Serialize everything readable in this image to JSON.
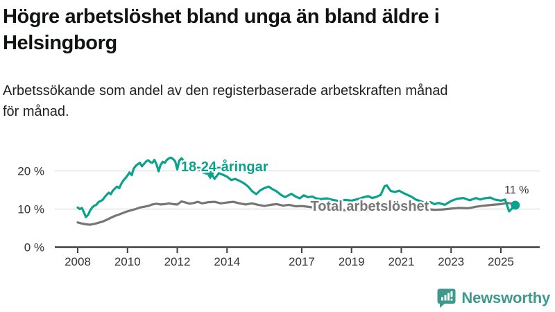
{
  "header": {
    "title_lines": [
      "Högre arbetslöshet bland unga än bland äldre i",
      "Helsingborg"
    ],
    "subtitle_lines": [
      "Arbetssökande som andel av den registerbaserade arbetskraften månad",
      "för månad."
    ]
  },
  "chart_data": {
    "type": "line",
    "title": "Högre arbetslöshet bland unga än bland äldre i Helsingborg",
    "subtitle": "Arbetssökande som andel av den registerbaserade arbetskraften månad för månad.",
    "xlabel": "",
    "ylabel": "",
    "x_unit": "year (monthly data)",
    "xlim": [
      2007.6,
      2026.2
    ],
    "ylim": [
      0,
      24
    ],
    "grid": "horizontal",
    "legend_position": "inline-labels",
    "yticks": [
      {
        "value": 0,
        "label": "0 %"
      },
      {
        "value": 10,
        "label": "10 %"
      },
      {
        "value": 20,
        "label": "20 %"
      }
    ],
    "xticks": [
      2008,
      2010,
      2012,
      2014,
      2017,
      2019,
      2021,
      2023,
      2025
    ],
    "series": [
      {
        "name": "Total arbetslöshet",
        "color": "#767676",
        "label_x": 2019.73,
        "label_y": 9.55,
        "points": [
          [
            2008.0,
            6.5
          ],
          [
            2008.17,
            6.2
          ],
          [
            2008.33,
            6.0
          ],
          [
            2008.5,
            5.9
          ],
          [
            2008.67,
            6.1
          ],
          [
            2008.83,
            6.4
          ],
          [
            2009.0,
            6.7
          ],
          [
            2009.17,
            7.2
          ],
          [
            2009.33,
            7.7
          ],
          [
            2009.5,
            8.2
          ],
          [
            2009.67,
            8.6
          ],
          [
            2009.83,
            9.0
          ],
          [
            2010.0,
            9.4
          ],
          [
            2010.17,
            9.7
          ],
          [
            2010.33,
            10.0
          ],
          [
            2010.5,
            10.4
          ],
          [
            2010.67,
            10.6
          ],
          [
            2010.83,
            10.8
          ],
          [
            2011.0,
            11.2
          ],
          [
            2011.17,
            11.4
          ],
          [
            2011.33,
            11.2
          ],
          [
            2011.5,
            11.3
          ],
          [
            2011.67,
            11.5
          ],
          [
            2011.83,
            11.3
          ],
          [
            2012.0,
            11.2
          ],
          [
            2012.17,
            12.0
          ],
          [
            2012.33,
            11.7
          ],
          [
            2012.5,
            11.4
          ],
          [
            2012.67,
            11.6
          ],
          [
            2012.83,
            11.9
          ],
          [
            2013.0,
            11.5
          ],
          [
            2013.25,
            11.8
          ],
          [
            2013.5,
            11.9
          ],
          [
            2013.75,
            11.5
          ],
          [
            2014.0,
            11.7
          ],
          [
            2014.25,
            11.9
          ],
          [
            2014.5,
            11.5
          ],
          [
            2014.75,
            11.2
          ],
          [
            2015.0,
            11.5
          ],
          [
            2015.25,
            11.1
          ],
          [
            2015.5,
            10.8
          ],
          [
            2015.75,
            11.1
          ],
          [
            2016.0,
            11.3
          ],
          [
            2016.25,
            10.9
          ],
          [
            2016.5,
            11.1
          ],
          [
            2016.75,
            10.7
          ],
          [
            2017.0,
            10.8
          ],
          [
            2017.5,
            10.4
          ],
          [
            2018.0,
            10.1
          ],
          [
            2018.5,
            9.8
          ],
          [
            2019.0,
            9.6
          ],
          [
            2019.5,
            9.5
          ],
          [
            2020.0,
            9.9
          ],
          [
            2020.33,
            11.1
          ],
          [
            2020.58,
            11.4
          ],
          [
            2021.0,
            11.0
          ],
          [
            2021.5,
            10.4
          ],
          [
            2022.0,
            10.0
          ],
          [
            2022.33,
            9.8
          ],
          [
            2022.67,
            9.9
          ],
          [
            2023.0,
            10.1
          ],
          [
            2023.33,
            10.3
          ],
          [
            2023.67,
            10.2
          ],
          [
            2024.0,
            10.6
          ],
          [
            2024.33,
            10.9
          ],
          [
            2024.67,
            11.1
          ],
          [
            2025.0,
            11.3
          ],
          [
            2025.25,
            11.6
          ],
          [
            2025.5,
            11.4
          ]
        ]
      },
      {
        "name": "18-24-åringar",
        "color": "#0aa18d",
        "label_x": 2013.9,
        "label_y": 19.9,
        "points": [
          [
            2008.0,
            10.4
          ],
          [
            2008.08,
            10.0
          ],
          [
            2008.17,
            10.3
          ],
          [
            2008.25,
            9.1
          ],
          [
            2008.33,
            7.9
          ],
          [
            2008.42,
            8.5
          ],
          [
            2008.5,
            9.6
          ],
          [
            2008.58,
            10.4
          ],
          [
            2008.67,
            10.9
          ],
          [
            2008.75,
            11.1
          ],
          [
            2008.83,
            11.8
          ],
          [
            2008.92,
            12.1
          ],
          [
            2009.0,
            12.4
          ],
          [
            2009.08,
            13.1
          ],
          [
            2009.17,
            13.8
          ],
          [
            2009.25,
            14.3
          ],
          [
            2009.33,
            13.9
          ],
          [
            2009.42,
            14.9
          ],
          [
            2009.5,
            15.4
          ],
          [
            2009.58,
            15.9
          ],
          [
            2009.67,
            15.5
          ],
          [
            2009.75,
            16.6
          ],
          [
            2009.83,
            17.5
          ],
          [
            2009.92,
            18.1
          ],
          [
            2010.0,
            18.8
          ],
          [
            2010.08,
            19.6
          ],
          [
            2010.17,
            18.9
          ],
          [
            2010.25,
            20.6
          ],
          [
            2010.33,
            21.3
          ],
          [
            2010.42,
            21.8
          ],
          [
            2010.5,
            22.1
          ],
          [
            2010.58,
            21.2
          ],
          [
            2010.67,
            21.9
          ],
          [
            2010.75,
            22.5
          ],
          [
            2010.83,
            22.8
          ],
          [
            2010.92,
            22.3
          ],
          [
            2011.0,
            22.1
          ],
          [
            2011.08,
            22.9
          ],
          [
            2011.17,
            21.7
          ],
          [
            2011.25,
            19.9
          ],
          [
            2011.33,
            21.6
          ],
          [
            2011.42,
            22.4
          ],
          [
            2011.5,
            22.1
          ],
          [
            2011.58,
            22.9
          ],
          [
            2011.67,
            23.3
          ],
          [
            2011.75,
            23.5
          ],
          [
            2011.83,
            23.1
          ],
          [
            2011.92,
            22.5
          ],
          [
            2012.0,
            20.4
          ],
          [
            2012.08,
            22.7
          ],
          [
            2012.17,
            23.3
          ],
          [
            2012.25,
            22.7
          ],
          [
            2012.33,
            22.1
          ],
          [
            2012.42,
            21.8
          ],
          [
            2012.5,
            21.2
          ],
          [
            2012.58,
            20.7
          ],
          [
            2012.67,
            20.3
          ],
          [
            2012.75,
            20.9
          ],
          [
            2012.83,
            20.5
          ],
          [
            2012.92,
            20.1
          ],
          [
            2013.0,
            19.7
          ],
          [
            2013.17,
            19.3
          ],
          [
            2013.33,
            19.8
          ],
          [
            2013.5,
            17.9
          ],
          [
            2013.67,
            19.4
          ],
          [
            2013.83,
            19.0
          ],
          [
            2014.0,
            18.5
          ],
          [
            2014.17,
            17.6
          ],
          [
            2014.33,
            17.9
          ],
          [
            2014.5,
            17.4
          ],
          [
            2014.67,
            16.8
          ],
          [
            2014.83,
            16.0
          ],
          [
            2015.0,
            14.7
          ],
          [
            2015.17,
            13.9
          ],
          [
            2015.33,
            14.9
          ],
          [
            2015.5,
            15.5
          ],
          [
            2015.67,
            15.9
          ],
          [
            2015.83,
            15.2
          ],
          [
            2016.0,
            14.6
          ],
          [
            2016.17,
            13.7
          ],
          [
            2016.33,
            13.1
          ],
          [
            2016.58,
            14.0
          ],
          [
            2016.75,
            13.3
          ],
          [
            2016.92,
            12.8
          ],
          [
            2017.08,
            13.6
          ],
          [
            2017.25,
            13.1
          ],
          [
            2017.42,
            13.3
          ],
          [
            2017.58,
            12.8
          ],
          [
            2017.75,
            12.6
          ],
          [
            2018.0,
            12.8
          ],
          [
            2018.25,
            12.4
          ],
          [
            2018.5,
            12.1
          ],
          [
            2018.75,
            12.4
          ],
          [
            2019.0,
            12.2
          ],
          [
            2019.25,
            12.6
          ],
          [
            2019.5,
            13.1
          ],
          [
            2019.67,
            13.4
          ],
          [
            2019.83,
            12.9
          ],
          [
            2020.0,
            13.2
          ],
          [
            2020.17,
            13.7
          ],
          [
            2020.33,
            16.0
          ],
          [
            2020.42,
            16.2
          ],
          [
            2020.5,
            15.4
          ],
          [
            2020.58,
            14.7
          ],
          [
            2020.75,
            14.5
          ],
          [
            2020.92,
            14.8
          ],
          [
            2021.08,
            14.2
          ],
          [
            2021.25,
            13.7
          ],
          [
            2021.42,
            13.2
          ],
          [
            2021.58,
            12.5
          ],
          [
            2021.75,
            12.1
          ],
          [
            2022.0,
            11.5
          ],
          [
            2022.17,
            11.8
          ],
          [
            2022.33,
            11.3
          ],
          [
            2022.5,
            11.6
          ],
          [
            2022.75,
            11.1
          ],
          [
            2023.0,
            12.1
          ],
          [
            2023.25,
            12.7
          ],
          [
            2023.5,
            12.9
          ],
          [
            2023.75,
            12.3
          ],
          [
            2024.0,
            12.9
          ],
          [
            2024.17,
            12.5
          ],
          [
            2024.33,
            12.8
          ],
          [
            2024.58,
            13.0
          ],
          [
            2024.75,
            12.5
          ],
          [
            2025.0,
            12.2
          ],
          [
            2025.17,
            12.5
          ],
          [
            2025.33,
            9.4
          ],
          [
            2025.58,
            11.0
          ]
        ]
      }
    ],
    "annotations": [
      {
        "text": "11 %",
        "x": 2025.58,
        "y": 11
      }
    ],
    "end_dot": {
      "series": "18-24-åringar",
      "x": 2025.58,
      "y": 11
    }
  },
  "footer": {
    "brand": "Newsworthy"
  }
}
